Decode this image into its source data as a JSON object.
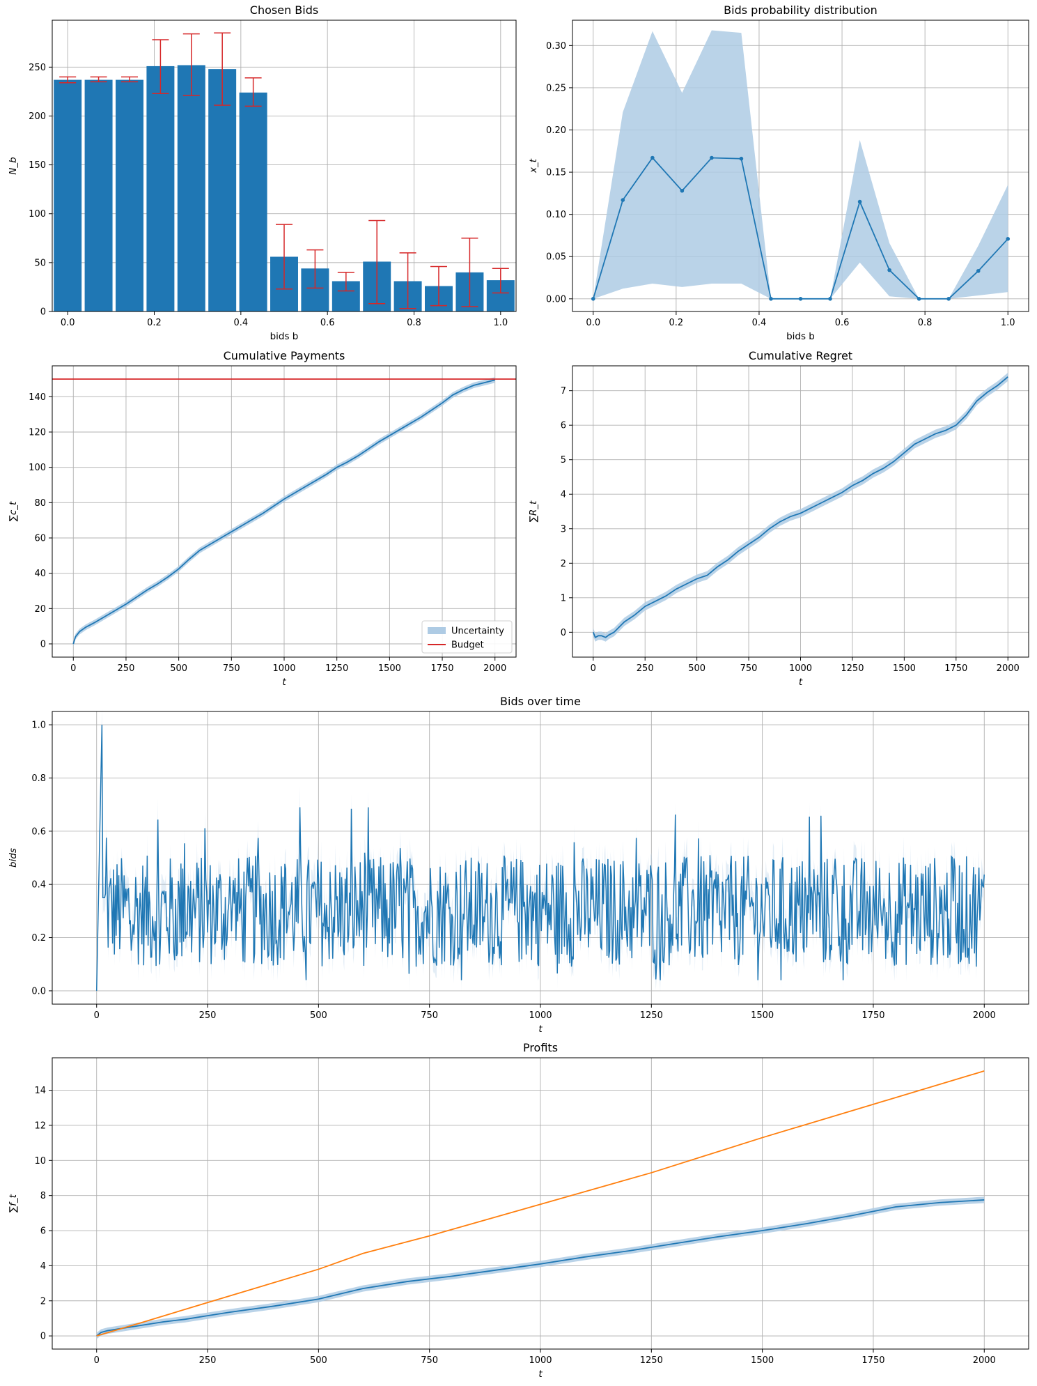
{
  "colors": {
    "blue": "#1f77b4",
    "orange": "#ff7f0e",
    "red": "#d62728",
    "band": "#aecbe4",
    "grid": "#b0b0b0"
  },
  "chart_data": [
    {
      "id": "chosen-bids",
      "type": "bar",
      "title": "Chosen Bids",
      "xlabel": "bids b",
      "ylabel": "N_b",
      "xlim": [
        -0.0357,
        1.0357
      ],
      "ylim": [
        0,
        298
      ],
      "xticks": [
        0.0,
        0.2,
        0.4,
        0.6,
        0.8,
        1.0
      ],
      "xtick_labels": [
        "0.0",
        "0.2",
        "0.4",
        "0.6",
        "0.8",
        "1.0"
      ],
      "yticks": [
        0,
        50,
        100,
        150,
        200,
        250
      ],
      "ytick_labels": [
        "0",
        "50",
        "100",
        "150",
        "200",
        "250"
      ],
      "grid": true,
      "bar_width": 0.0643,
      "x": [
        0.0,
        0.0714,
        0.1429,
        0.2143,
        0.2857,
        0.3571,
        0.4286,
        0.5,
        0.5714,
        0.6429,
        0.7143,
        0.7857,
        0.8571,
        0.9286,
        1.0
      ],
      "values": [
        237,
        237,
        237,
        251,
        252,
        248,
        224,
        56,
        44,
        31,
        51,
        31,
        26,
        40,
        32
      ],
      "err_low": [
        234,
        235,
        235,
        223,
        221,
        211,
        210,
        23,
        24,
        21,
        8,
        3,
        6,
        5,
        19
      ],
      "err_high": [
        240,
        240,
        240,
        278,
        284,
        285,
        239,
        89,
        63,
        40,
        93,
        60,
        46,
        75,
        44
      ]
    },
    {
      "id": "bids-probability",
      "type": "line",
      "title": "Bids probability distribution",
      "xlabel": "bids b",
      "ylabel": "x_t",
      "xlim": [
        -0.05,
        1.05
      ],
      "ylim": [
        -0.015,
        0.33
      ],
      "xticks": [
        0.0,
        0.2,
        0.4,
        0.6,
        0.8,
        1.0
      ],
      "xtick_labels": [
        "0.0",
        "0.2",
        "0.4",
        "0.6",
        "0.8",
        "1.0"
      ],
      "yticks": [
        0.0,
        0.05,
        0.1,
        0.15,
        0.2,
        0.25,
        0.3
      ],
      "ytick_labels": [
        "0.00",
        "0.05",
        "0.10",
        "0.15",
        "0.20",
        "0.25",
        "0.30"
      ],
      "grid": true,
      "x": [
        0.0,
        0.0714,
        0.1429,
        0.2143,
        0.2857,
        0.3571,
        0.4286,
        0.5,
        0.5714,
        0.6429,
        0.7143,
        0.7857,
        0.8571,
        0.9286,
        1.0
      ],
      "y": [
        0.0,
        0.117,
        0.167,
        0.128,
        0.167,
        0.166,
        0.0,
        0.0,
        0.0,
        0.115,
        0.034,
        0.0,
        0.0,
        0.033,
        0.071
      ],
      "band_low": [
        0.0,
        0.012,
        0.018,
        0.014,
        0.018,
        0.018,
        0.0,
        0.0,
        0.0,
        0.043,
        0.003,
        0.0,
        0.0,
        0.004,
        0.008
      ],
      "band_high": [
        0.0,
        0.221,
        0.317,
        0.244,
        0.318,
        0.315,
        0.0,
        0.0,
        0.0,
        0.188,
        0.066,
        0.0,
        0.0,
        0.063,
        0.135
      ]
    },
    {
      "id": "cumulative-payments",
      "type": "line",
      "title": "Cumulative Payments",
      "xlabel": "t",
      "ylabel": "∑c_t",
      "xlim": [
        -100,
        2100
      ],
      "ylim": [
        -7.5,
        157.5
      ],
      "xticks": [
        0,
        250,
        500,
        750,
        1000,
        1250,
        1500,
        1750,
        2000
      ],
      "xtick_labels": [
        "0",
        "250",
        "500",
        "750",
        "1000",
        "1250",
        "1500",
        "1750",
        "2000"
      ],
      "yticks": [
        0,
        20,
        40,
        60,
        80,
        100,
        120,
        140
      ],
      "ytick_labels": [
        "0",
        "20",
        "40",
        "60",
        "80",
        "100",
        "120",
        "140"
      ],
      "grid": true,
      "legend": {
        "placement": "lower-right",
        "entries": [
          "Uncertainty",
          "Budget"
        ]
      },
      "budget": 150,
      "x": [
        0,
        10,
        30,
        60,
        100,
        150,
        200,
        250,
        300,
        350,
        400,
        450,
        500,
        550,
        600,
        650,
        700,
        750,
        800,
        850,
        900,
        950,
        1000,
        1050,
        1100,
        1150,
        1200,
        1250,
        1300,
        1350,
        1400,
        1450,
        1500,
        1550,
        1600,
        1650,
        1700,
        1750,
        1800,
        1850,
        1900,
        1950,
        2000
      ],
      "y": [
        0,
        4,
        7,
        9.5,
        12,
        15.5,
        19,
        22.5,
        26.5,
        30.5,
        34,
        38,
        42.5,
        48,
        53,
        56.5,
        60,
        63.5,
        67,
        70.5,
        74,
        78,
        82,
        85.5,
        89,
        92.5,
        96,
        100,
        103,
        106.5,
        110.5,
        114.5,
        118,
        121.5,
        125,
        128.5,
        132.5,
        136.5,
        141,
        144,
        146.5,
        148,
        149.5
      ],
      "band_halfwidth": 1.6
    },
    {
      "id": "cumulative-regret",
      "type": "line",
      "title": "Cumulative Regret",
      "xlabel": "t",
      "ylabel": "∑R_t",
      "xlim": [
        -100,
        2100
      ],
      "ylim": [
        -0.72,
        7.72
      ],
      "xticks": [
        0,
        250,
        500,
        750,
        1000,
        1250,
        1500,
        1750,
        2000
      ],
      "xtick_labels": [
        "0",
        "250",
        "500",
        "750",
        "1000",
        "1250",
        "1500",
        "1750",
        "2000"
      ],
      "yticks": [
        0,
        1,
        2,
        3,
        4,
        5,
        6,
        7
      ],
      "ytick_labels": [
        "0",
        "1",
        "2",
        "3",
        "4",
        "5",
        "6",
        "7"
      ],
      "grid": true,
      "x": [
        0,
        10,
        25,
        40,
        60,
        75,
        100,
        150,
        200,
        250,
        300,
        350,
        400,
        450,
        500,
        550,
        600,
        650,
        700,
        750,
        800,
        850,
        900,
        950,
        1000,
        1050,
        1100,
        1150,
        1200,
        1250,
        1300,
        1350,
        1400,
        1450,
        1500,
        1550,
        1600,
        1650,
        1700,
        1750,
        1800,
        1850,
        1900,
        1950,
        2000
      ],
      "y": [
        0,
        -0.15,
        -0.1,
        -0.1,
        -0.15,
        -0.08,
        0.0,
        0.3,
        0.5,
        0.75,
        0.9,
        1.05,
        1.25,
        1.4,
        1.55,
        1.65,
        1.9,
        2.1,
        2.35,
        2.55,
        2.75,
        3.0,
        3.2,
        3.35,
        3.45,
        3.6,
        3.75,
        3.9,
        4.05,
        4.25,
        4.4,
        4.6,
        4.75,
        4.95,
        5.2,
        5.45,
        5.6,
        5.75,
        5.85,
        6.0,
        6.3,
        6.7,
        6.95,
        7.15,
        7.4
      ],
      "band_halfwidth": 0.12
    },
    {
      "id": "bids-over-time",
      "type": "line",
      "title": "Bids over time",
      "xlabel": "t",
      "ylabel": "bids",
      "xlim": [
        -100,
        2100
      ],
      "ylim": [
        -0.05,
        1.05
      ],
      "xticks": [
        0,
        250,
        500,
        750,
        1000,
        1250,
        1500,
        1750,
        2000
      ],
      "xtick_labels": [
        "0",
        "250",
        "500",
        "750",
        "1000",
        "1250",
        "1500",
        "1750",
        "2000"
      ],
      "yticks": [
        0.0,
        0.2,
        0.4,
        0.6,
        0.8,
        1.0
      ],
      "ytick_labels": [
        "0.0",
        "0.2",
        "0.4",
        "0.6",
        "0.8",
        "1.0"
      ],
      "grid": true,
      "series_summary": {
        "start": 0.0,
        "peak_t": 12,
        "peak_value": 1.0,
        "mean": 0.3,
        "typical_low": 0.1,
        "typical_high": 0.55,
        "n_points": 2000
      }
    },
    {
      "id": "profits",
      "type": "line",
      "title": "Profits",
      "xlabel": "t",
      "ylabel": "∑f_t",
      "xlim": [
        -100,
        2100
      ],
      "ylim": [
        -0.75,
        15.85
      ],
      "xticks": [
        0,
        250,
        500,
        750,
        1000,
        1250,
        1500,
        1750,
        2000
      ],
      "xtick_labels": [
        "0",
        "250",
        "500",
        "750",
        "1000",
        "1250",
        "1500",
        "1750",
        "2000"
      ],
      "yticks": [
        0,
        2,
        4,
        6,
        8,
        10,
        12,
        14
      ],
      "ytick_labels": [
        "0",
        "2",
        "4",
        "6",
        "8",
        "10",
        "12",
        "14"
      ],
      "grid": true,
      "series": [
        {
          "color": "orange",
          "x": [
            0,
            100,
            250,
            500,
            600,
            750,
            1000,
            1250,
            1500,
            1750,
            2000
          ],
          "y": [
            0,
            0.75,
            1.9,
            3.8,
            4.7,
            5.7,
            7.5,
            9.3,
            11.3,
            13.2,
            15.1
          ]
        },
        {
          "color": "blue",
          "x": [
            0,
            10,
            25,
            50,
            100,
            150,
            200,
            250,
            300,
            400,
            500,
            550,
            600,
            700,
            800,
            900,
            1000,
            1100,
            1200,
            1300,
            1400,
            1500,
            1600,
            1700,
            1750,
            1800,
            1900,
            2000
          ],
          "y": [
            0,
            0.2,
            0.3,
            0.4,
            0.6,
            0.8,
            0.95,
            1.15,
            1.35,
            1.7,
            2.1,
            2.4,
            2.7,
            3.1,
            3.4,
            3.75,
            4.1,
            4.5,
            4.85,
            5.25,
            5.65,
            6.0,
            6.4,
            6.85,
            7.1,
            7.35,
            7.6,
            7.75
          ],
          "band_halfwidth": 0.18
        }
      ]
    }
  ]
}
